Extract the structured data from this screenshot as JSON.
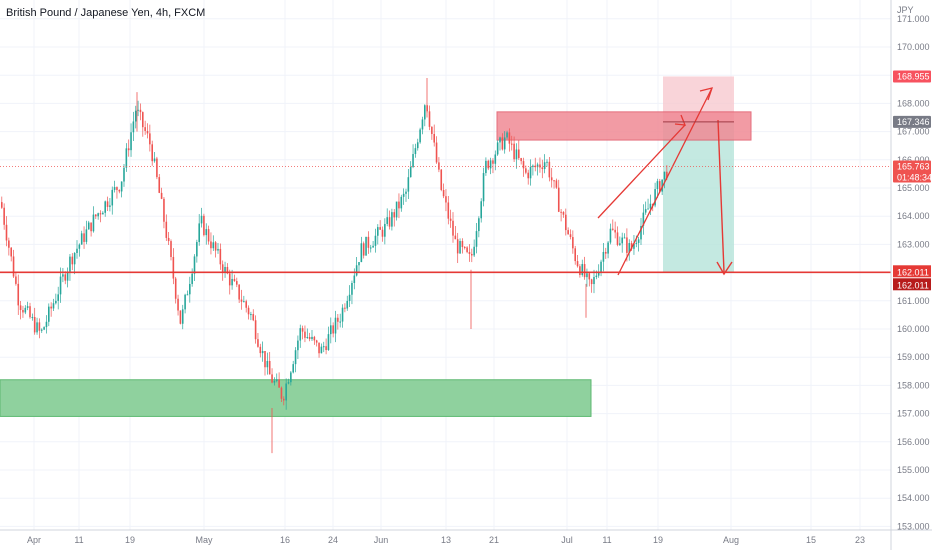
{
  "header": {
    "symbol_title": "British Pound / Japanese Yen, 4h, FXCM",
    "currency": "JPY"
  },
  "colors": {
    "up": "#26a69a",
    "down": "#ef5350",
    "grid": "#f0f3fa",
    "resistance_zone": "#f08a95",
    "support_zone": "#8fd19e",
    "target_zone": "#f8c9d0",
    "stop_zone": "#b5e3da",
    "line_red": "#e53935"
  },
  "axis": {
    "y_ticks": [
      "171.000",
      "170.000",
      "169.000",
      "168.000",
      "167.000",
      "166.000",
      "165.000",
      "164.000",
      "163.000",
      "162.000",
      "161.000",
      "160.000",
      "159.000",
      "158.000",
      "157.000",
      "156.000",
      "155.000",
      "154.000",
      "153.000"
    ],
    "x_ticks": [
      "Apr",
      "11",
      "19",
      "May",
      "16",
      "24",
      "Jun",
      "13",
      "21",
      "Jul",
      "11",
      "19",
      "Aug",
      "15",
      "23"
    ]
  },
  "price_labels": {
    "target": "168.955",
    "entry": "167.346",
    "last": "165.763",
    "countdown": "01:48:34",
    "support_1": "162.011",
    "support_2": "162.011"
  },
  "chart_data": {
    "type": "candlestick",
    "title": "British Pound / Japanese Yen, 4h, FXCM",
    "ylabel": "JPY",
    "ylim": [
      153.0,
      171.0
    ],
    "horizontal_line": 162.011,
    "zones": [
      {
        "name": "resistance",
        "from": 166.7,
        "to": 167.7
      },
      {
        "name": "support",
        "from": 156.9,
        "to": 158.2
      },
      {
        "name": "target",
        "from": 167.35,
        "to": 168.955
      },
      {
        "name": "stop",
        "from": 162.011,
        "to": 167.35
      }
    ],
    "path_points": [
      [
        0,
        164.5
      ],
      [
        18,
        161.0
      ],
      [
        40,
        159.8
      ],
      [
        70,
        162.5
      ],
      [
        95,
        164.0
      ],
      [
        120,
        165.2
      ],
      [
        135,
        167.8
      ],
      [
        150,
        166.5
      ],
      [
        165,
        163.5
      ],
      [
        180,
        160.2
      ],
      [
        200,
        163.8
      ],
      [
        225,
        162.0
      ],
      [
        250,
        160.5
      ],
      [
        268,
        158.4
      ],
      [
        282,
        157.6
      ],
      [
        300,
        160.0
      ],
      [
        320,
        159.2
      ],
      [
        340,
        160.5
      ],
      [
        360,
        162.8
      ],
      [
        385,
        163.6
      ],
      [
        405,
        164.8
      ],
      [
        425,
        168.2
      ],
      [
        440,
        165.0
      ],
      [
        455,
        163.0
      ],
      [
        470,
        162.4
      ],
      [
        485,
        165.8
      ],
      [
        505,
        166.8
      ],
      [
        525,
        165.5
      ],
      [
        545,
        166.0
      ],
      [
        560,
        164.2
      ],
      [
        575,
        162.5
      ],
      [
        590,
        161.4
      ],
      [
        610,
        163.5
      ],
      [
        630,
        162.8
      ],
      [
        650,
        164.5
      ],
      [
        668,
        165.76
      ]
    ]
  }
}
